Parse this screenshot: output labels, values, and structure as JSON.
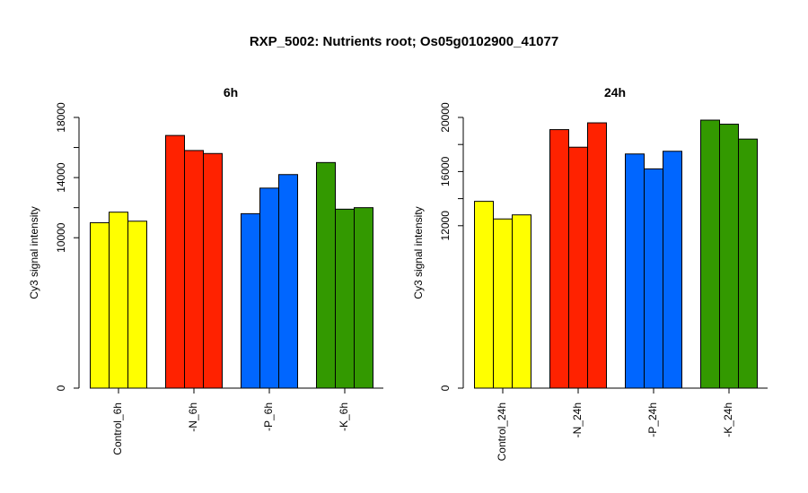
{
  "title": "RXP_5002: Nutrients root; Os05g0102900_41077",
  "colors": {
    "yellow": "#ffff00",
    "red": "#ff2200",
    "blue": "#0066ff",
    "green": "#339900"
  },
  "chart_data": [
    {
      "type": "bar",
      "title": "6h",
      "ylabel": "Cy3 signal intensity",
      "ylim": [
        0,
        18000
      ],
      "yticks": [
        0,
        10000,
        14000,
        18000
      ],
      "yticklabels": [
        "0",
        "10000",
        "14000",
        "18000"
      ],
      "categories": [
        "Control_6h",
        "-N_6h",
        "-P_6h",
        "-K_6h"
      ],
      "bar_colors": [
        "#ffff00",
        "#ff2200",
        "#0066ff",
        "#339900"
      ],
      "values": [
        [
          11000,
          11700,
          11100
        ],
        [
          16800,
          15800,
          15600
        ],
        [
          11600,
          13300,
          14200
        ],
        [
          15000,
          11900,
          12000
        ]
      ]
    },
    {
      "type": "bar",
      "title": "24h",
      "ylabel": "Cy3 signal intensity",
      "ylim": [
        0,
        20000
      ],
      "yticks": [
        0,
        12000,
        16000,
        20000
      ],
      "yticklabels": [
        "0",
        "12000",
        "16000",
        "20000"
      ],
      "categories": [
        "Control_24h",
        "-N_24h",
        "-P_24h",
        "-K_24h"
      ],
      "bar_colors": [
        "#ffff00",
        "#ff2200",
        "#0066ff",
        "#339900"
      ],
      "values": [
        [
          13800,
          12500,
          12800
        ],
        [
          19100,
          17800,
          19600
        ],
        [
          17300,
          16200,
          17500
        ],
        [
          19800,
          19500,
          18400
        ]
      ]
    }
  ]
}
